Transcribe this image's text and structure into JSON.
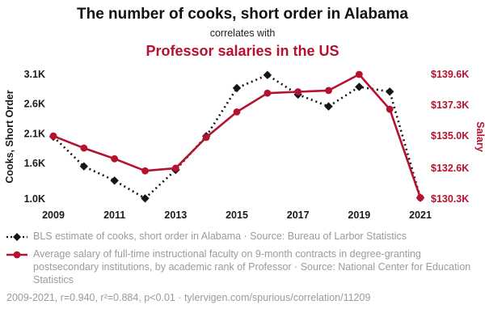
{
  "header": {
    "title": "The number of cooks, short order in Alabama",
    "connector": "correlates with",
    "subtitle": "Professor salaries in the US"
  },
  "colors": {
    "accent_red": "#b5122f",
    "series_black": "#151515",
    "legend_gray": "#9b9b9b"
  },
  "chart_data": {
    "type": "line",
    "x": [
      2009,
      2010,
      2011,
      2012,
      2013,
      2014,
      2015,
      2016,
      2017,
      2018,
      2019,
      2020,
      2021
    ],
    "x_ticks": [
      2009,
      2011,
      2013,
      2015,
      2017,
      2019,
      2021
    ],
    "left_axis": {
      "label": "Cooks, Short Order",
      "min": 1.0,
      "max": 3.1,
      "tick_values": [
        1.0,
        1.6,
        2.1,
        2.6,
        3.1
      ],
      "tick_labels": [
        "1.0K",
        "1.6K",
        "2.1K",
        "2.6K",
        "3.1K"
      ]
    },
    "right_axis": {
      "label": "Salary",
      "min": 130.3,
      "max": 139.6,
      "tick_values": [
        130.3,
        132.6,
        135.0,
        137.3,
        139.6
      ],
      "tick_labels": [
        "$130.3K",
        "$132.6K",
        "$135.0K",
        "$137.3K",
        "$139.6K"
      ]
    },
    "series": [
      {
        "name": "BLS estimate of cooks, short order in Alabama",
        "axis": "left",
        "color": "#151515",
        "style": "dotted",
        "marker": "diamond",
        "values": [
          2.05,
          1.55,
          1.31,
          1.01,
          1.49,
          2.06,
          2.87,
          3.09,
          2.76,
          2.56,
          2.89,
          2.81,
          1.02
        ]
      },
      {
        "name": "Average salary of full-time instructional faculty, rank of Professor",
        "axis": "right",
        "color": "#b5122f",
        "style": "solid",
        "marker": "circle",
        "values": [
          135.0,
          134.1,
          133.3,
          132.4,
          132.6,
          134.9,
          136.8,
          138.2,
          138.3,
          138.4,
          139.6,
          137.0,
          130.4
        ]
      }
    ],
    "grid": false,
    "legend_position": "bottom"
  },
  "legend": {
    "cooks": "BLS estimate of cooks, short order in Alabama · Source: Bureau of Larbor Statistics",
    "salary": "Average salary of full-time instructional faculty on 9-month contracts in degree-granting postsecondary institutions, by academic rank of Professor · Source: National Center for Education Statistics",
    "footer": "2009-2021, r=0.940, r²=0.884, p<0.01 · tylervigen.com/spurious/correlation/11209"
  }
}
